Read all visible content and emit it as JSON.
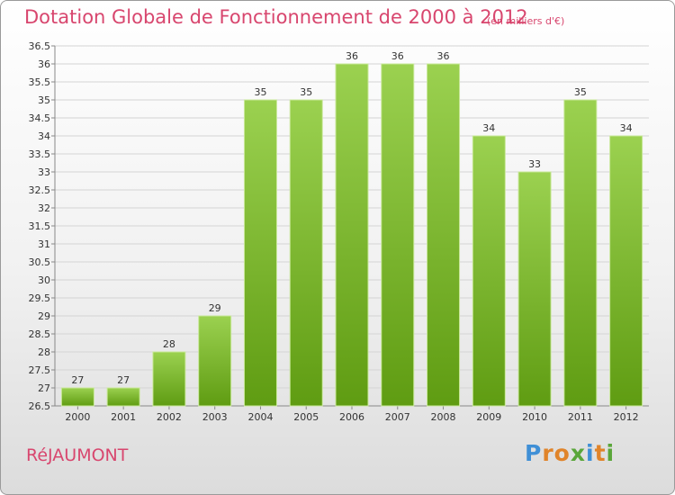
{
  "header": {
    "title": "Dotation Globale de Fonctionnement de 2000 à 2012",
    "unit": "(en milliers d'€)"
  },
  "footer": {
    "commune": "RéJAUMONT",
    "brand": "Proxiti"
  },
  "colors": {
    "accent": "#d8466e",
    "bar_light": "#9bd150",
    "bar_dark": "#5f9c12",
    "brand_letters": [
      "#3f8fd6",
      "#e0842a",
      "#e0842a",
      "#5aa63a",
      "#3f8fd6",
      "#e0842a",
      "#5aa63a"
    ]
  },
  "chart_data": {
    "type": "bar",
    "categories": [
      "2000",
      "2001",
      "2002",
      "2003",
      "2004",
      "2005",
      "2006",
      "2007",
      "2008",
      "2009",
      "2010",
      "2011",
      "2012"
    ],
    "values": [
      27,
      27,
      28,
      29,
      35,
      35,
      36,
      36,
      36,
      34,
      33,
      35,
      34
    ],
    "ylim": [
      26.5,
      36.5
    ],
    "yticks": [
      "26.5",
      "27",
      "27.5",
      "28",
      "28.5",
      "29",
      "29.5",
      "30",
      "30.5",
      "31",
      "31.5",
      "32",
      "32.5",
      "33",
      "33.5",
      "34",
      "34.5",
      "35",
      "35.5",
      "36",
      "36.5"
    ],
    "grid": true
  }
}
